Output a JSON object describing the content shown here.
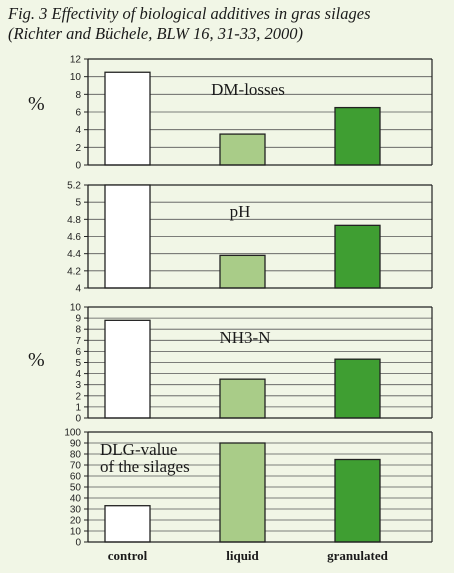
{
  "figure": {
    "title_line1": "Fig. 3 Effectivity of biological additives in gras silages",
    "title_line2": "(Richter and Büchele, BLW 16, 31-33, 2000)"
  },
  "colors": {
    "background": "#f1f6e6",
    "control": "#ffffff",
    "liquid": "#a9cc88",
    "granulated": "#3f9e32",
    "axis": "#222222",
    "grid": "#555555"
  },
  "chart_data": {
    "type": "bar",
    "categories": [
      "control",
      "liquid",
      "granulated"
    ],
    "panels": [
      {
        "label": "DM-losses",
        "unit": "%",
        "ylim": [
          0,
          12
        ],
        "ticks": [
          "0",
          "2",
          "4",
          "6",
          "8",
          "10",
          "12"
        ],
        "values": [
          10.5,
          3.5,
          6.5
        ]
      },
      {
        "label": "pH",
        "unit": "",
        "ylim": [
          4,
          5.2
        ],
        "ticks": [
          "4",
          "4.2",
          "4.4",
          "4.6",
          "4.8",
          "5",
          "5.2"
        ],
        "values": [
          5.2,
          4.38,
          4.73
        ]
      },
      {
        "label": "NH3-N",
        "unit": "%",
        "ylim": [
          0,
          10
        ],
        "ticks": [
          "0",
          "1",
          "2",
          "3",
          "4",
          "5",
          "6",
          "7",
          "8",
          "9",
          "10"
        ],
        "values": [
          8.8,
          3.5,
          5.3
        ]
      },
      {
        "label": "DLG-value\nof the silages",
        "unit": "",
        "ylim": [
          0,
          100
        ],
        "ticks": [
          "0",
          "10",
          "20",
          "30",
          "40",
          "50",
          "60",
          "70",
          "80",
          "90",
          "100"
        ],
        "values": [
          33,
          90,
          75
        ]
      }
    ]
  }
}
